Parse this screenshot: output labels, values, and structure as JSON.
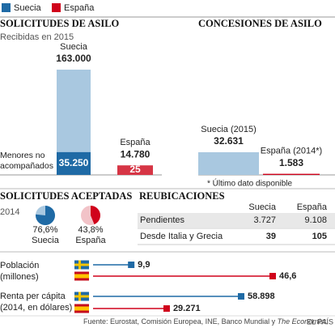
{
  "legend": [
    {
      "name": "Suecia",
      "color": "#1f6aa5"
    },
    {
      "name": "España",
      "color": "#d0021b"
    }
  ],
  "chart_data": [
    {
      "type": "bar",
      "title": "SOLICITUDES DE ASILO",
      "subtitle": "Recibidas en 2015",
      "categories": [
        "Suecia",
        "España"
      ],
      "series": [
        {
          "values": [
            163000,
            14780
          ],
          "value_labels": [
            "163.000",
            "14.780"
          ],
          "colors": [
            "#a9c8e0",
            "#d63545"
          ]
        },
        {
          "name": "Menores no acompañados",
          "values": [
            35250,
            25
          ],
          "value_labels": [
            "35.250",
            "25"
          ],
          "colors": [
            "#1f6aa5",
            "#d0021b"
          ]
        }
      ]
    },
    {
      "type": "bar",
      "title": "CONCESIONES DE ASILO",
      "note": "* Último dato disponible",
      "categories": [
        "Suecia (2015)",
        "España (2014*)"
      ],
      "series": [
        {
          "values": [
            32631,
            1583
          ],
          "value_labels": [
            "32.631",
            "1.583"
          ],
          "colors": [
            "#a9c8e0",
            "#d0021b"
          ]
        }
      ]
    },
    {
      "type": "pie",
      "title": "SOLICITUDES ACEPTADAS",
      "subtitle": "2014",
      "categories": [
        "Suecia",
        "España"
      ],
      "values": [
        76.6,
        43.8
      ],
      "value_labels": [
        "76,6%",
        "43,8%"
      ],
      "colors": [
        "#1f6aa5",
        "#d0021b"
      ],
      "rest_colors": [
        "#a9c8e0",
        "#f2c3c8"
      ]
    },
    {
      "type": "dot",
      "title": "Población",
      "subtitle": "(millones)",
      "values": [
        9.9,
        46.6
      ],
      "value_labels": [
        "9,9",
        "46,6"
      ],
      "colors": [
        "#1f6aa5",
        "#d0021b"
      ]
    },
    {
      "type": "dot",
      "title": "Renta per cápita",
      "subtitle": "(2014, en dólares)",
      "values": [
        58898,
        29271
      ],
      "value_labels": [
        "58.898",
        "29.271"
      ],
      "colors": [
        "#1f6aa5",
        "#d0021b"
      ]
    }
  ],
  "table": {
    "title": "REUBICACIONES",
    "columns": [
      "Suecia",
      "España"
    ],
    "rows": [
      [
        "Pendientes",
        "3.727",
        "9.108"
      ],
      [
        "Desde Italia y Grecia",
        "39",
        "105"
      ]
    ]
  },
  "footer": {
    "source": [
      "Fuente: Eurostat, Comisión Europea, INE, Banco Mundial y ",
      "The Economist",
      "."
    ],
    "brand": "EL PAÍS"
  }
}
